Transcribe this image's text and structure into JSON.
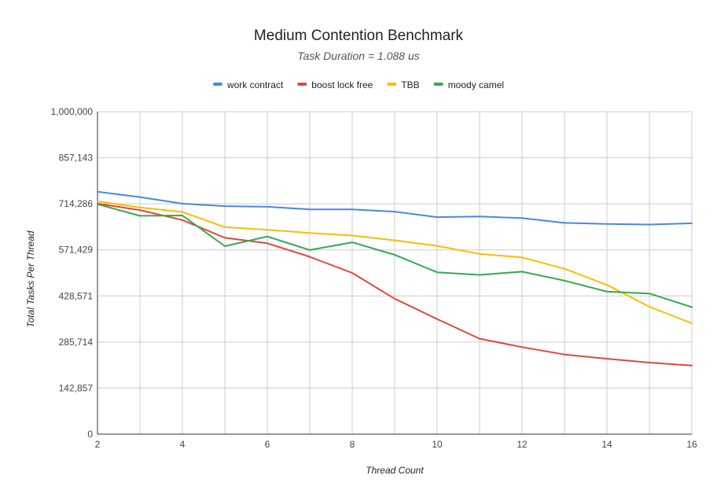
{
  "chart_data": {
    "type": "line",
    "title": "Medium Contention Benchmark",
    "subtitle": "Task Duration = 1.088 us",
    "xlabel": "Thread Count",
    "ylabel": "Total Tasks Per Thread",
    "xlim": [
      2,
      16
    ],
    "ylim": [
      0,
      1000000
    ],
    "x_ticks": [
      2,
      4,
      6,
      8,
      10,
      12,
      14,
      16
    ],
    "x_tick_labels": [
      "2",
      "4",
      "6",
      "8",
      "10",
      "12",
      "14",
      "16"
    ],
    "y_ticks": [
      0,
      142857,
      285714,
      428571,
      571429,
      714286,
      857143,
      1000000
    ],
    "y_tick_labels": [
      "0",
      "142,857",
      "285,714",
      "428,571",
      "571,429",
      "714,286",
      "857,143",
      "1,000,000"
    ],
    "grid": true,
    "legend_position": "top",
    "x": [
      2,
      3,
      4,
      5,
      6,
      7,
      8,
      9,
      10,
      11,
      12,
      13,
      14,
      15,
      16
    ],
    "series": [
      {
        "name": "work contract",
        "color": "#4a86e8",
        "values": [
          752000,
          735000,
          715000,
          707000,
          705000,
          697000,
          697000,
          690000,
          673000,
          675000,
          670000,
          655000,
          652000,
          650000,
          654000
        ]
      },
      {
        "name": "boost lock free",
        "color": "#e2463a",
        "values": [
          715000,
          695000,
          664000,
          609000,
          592000,
          550000,
          500000,
          420000,
          357000,
          296000,
          270000,
          247000,
          234000,
          222000,
          213000
        ]
      },
      {
        "name": "TBB",
        "color": "#fbbc04",
        "values": [
          722000,
          703000,
          689000,
          642000,
          634000,
          624000,
          616000,
          601000,
          584000,
          559000,
          548000,
          513000,
          463000,
          395000,
          344000
        ]
      },
      {
        "name": "moody camel",
        "color": "#34a853",
        "values": [
          713000,
          677000,
          678000,
          583000,
          613000,
          571000,
          595000,
          556000,
          502000,
          494000,
          504000,
          476000,
          442000,
          436000,
          394000
        ]
      }
    ]
  }
}
